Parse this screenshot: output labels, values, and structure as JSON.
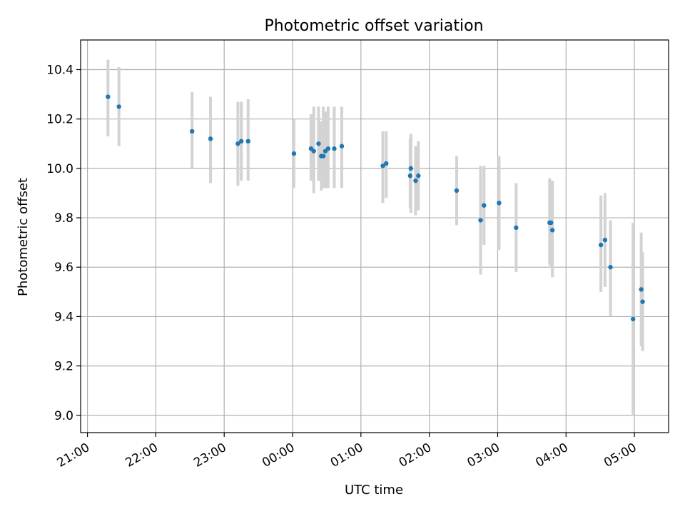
{
  "chart_data": {
    "type": "scatter",
    "title": "Photometric offset variation",
    "xlabel": "UTC time",
    "ylabel": "Photometric offset",
    "x_unit": "hours after 21:00 UTC",
    "xlim": [
      -0.1,
      8.5
    ],
    "ylim": [
      8.93,
      10.52
    ],
    "grid": true,
    "x_tick_values": [
      0,
      1,
      2,
      3,
      4,
      5,
      6,
      7,
      8
    ],
    "x_tick_labels": [
      "21:00",
      "22:00",
      "23:00",
      "00:00",
      "01:00",
      "02:00",
      "03:00",
      "04:00",
      "05:00"
    ],
    "y_ticks": [
      9.0,
      9.2,
      9.4,
      9.6,
      9.8,
      10.0,
      10.2,
      10.4
    ],
    "y_tick_labels": [
      "9.0",
      "9.2",
      "9.4",
      "9.6",
      "9.8",
      "10.0",
      "10.2",
      "10.4"
    ],
    "colors": {
      "point": "#1f77b4",
      "errorbar": "#d3d3d3",
      "grid": "#b0b0b0"
    },
    "series": [
      {
        "marker": "point-with-errorbar",
        "points": [
          {
            "x": 0.3,
            "y": 10.29,
            "ylo": 10.13,
            "yhi": 10.44
          },
          {
            "x": 0.46,
            "y": 10.25,
            "ylo": 10.09,
            "yhi": 10.41
          },
          {
            "x": 1.53,
            "y": 10.15,
            "ylo": 10.0,
            "yhi": 10.31
          },
          {
            "x": 1.8,
            "y": 10.12,
            "ylo": 9.94,
            "yhi": 10.29
          },
          {
            "x": 2.2,
            "y": 10.1,
            "ylo": 9.93,
            "yhi": 10.27
          },
          {
            "x": 2.25,
            "y": 10.11,
            "ylo": 9.95,
            "yhi": 10.27
          },
          {
            "x": 2.35,
            "y": 10.11,
            "ylo": 9.95,
            "yhi": 10.28
          },
          {
            "x": 3.02,
            "y": 10.06,
            "ylo": 9.92,
            "yhi": 10.2
          },
          {
            "x": 3.27,
            "y": 10.08,
            "ylo": 9.95,
            "yhi": 10.22
          },
          {
            "x": 3.31,
            "y": 10.07,
            "ylo": 9.9,
            "yhi": 10.25
          },
          {
            "x": 3.38,
            "y": 10.1,
            "ylo": 9.95,
            "yhi": 10.25
          },
          {
            "x": 3.42,
            "y": 10.05,
            "ylo": 9.91,
            "yhi": 10.19
          },
          {
            "x": 3.45,
            "y": 10.05,
            "ylo": 9.92,
            "yhi": 10.25
          },
          {
            "x": 3.48,
            "y": 10.07,
            "ylo": 9.92,
            "yhi": 10.23
          },
          {
            "x": 3.52,
            "y": 10.08,
            "ylo": 9.92,
            "yhi": 10.25
          },
          {
            "x": 3.61,
            "y": 10.08,
            "ylo": 9.92,
            "yhi": 10.25
          },
          {
            "x": 3.72,
            "y": 10.09,
            "ylo": 9.92,
            "yhi": 10.25
          },
          {
            "x": 4.32,
            "y": 10.01,
            "ylo": 9.86,
            "yhi": 10.15
          },
          {
            "x": 4.37,
            "y": 10.02,
            "ylo": 9.88,
            "yhi": 10.15
          },
          {
            "x": 4.73,
            "y": 10.0,
            "ylo": 9.82,
            "yhi": 10.14
          },
          {
            "x": 4.72,
            "y": 9.97,
            "ylo": 9.84,
            "yhi": 10.12
          },
          {
            "x": 4.8,
            "y": 9.95,
            "ylo": 9.81,
            "yhi": 10.09
          },
          {
            "x": 4.84,
            "y": 9.97,
            "ylo": 9.83,
            "yhi": 10.11
          },
          {
            "x": 5.4,
            "y": 9.91,
            "ylo": 9.77,
            "yhi": 10.05
          },
          {
            "x": 5.75,
            "y": 9.79,
            "ylo": 9.57,
            "yhi": 10.01
          },
          {
            "x": 5.8,
            "y": 9.85,
            "ylo": 9.69,
            "yhi": 10.01
          },
          {
            "x": 6.02,
            "y": 9.86,
            "ylo": 9.67,
            "yhi": 10.05
          },
          {
            "x": 6.27,
            "y": 9.76,
            "ylo": 9.58,
            "yhi": 9.94
          },
          {
            "x": 6.76,
            "y": 9.78,
            "ylo": 9.61,
            "yhi": 9.96
          },
          {
            "x": 6.78,
            "y": 9.78,
            "ylo": 9.6,
            "yhi": 9.95
          },
          {
            "x": 6.8,
            "y": 9.75,
            "ylo": 9.56,
            "yhi": 9.95
          },
          {
            "x": 7.51,
            "y": 9.69,
            "ylo": 9.5,
            "yhi": 9.89
          },
          {
            "x": 7.57,
            "y": 9.71,
            "ylo": 9.52,
            "yhi": 9.9
          },
          {
            "x": 7.65,
            "y": 9.6,
            "ylo": 9.4,
            "yhi": 9.79
          },
          {
            "x": 7.98,
            "y": 9.39,
            "ylo": 9.0,
            "yhi": 9.78
          },
          {
            "x": 8.1,
            "y": 9.51,
            "ylo": 9.28,
            "yhi": 9.74
          },
          {
            "x": 8.12,
            "y": 9.46,
            "ylo": 9.26,
            "yhi": 9.66
          }
        ]
      }
    ]
  }
}
